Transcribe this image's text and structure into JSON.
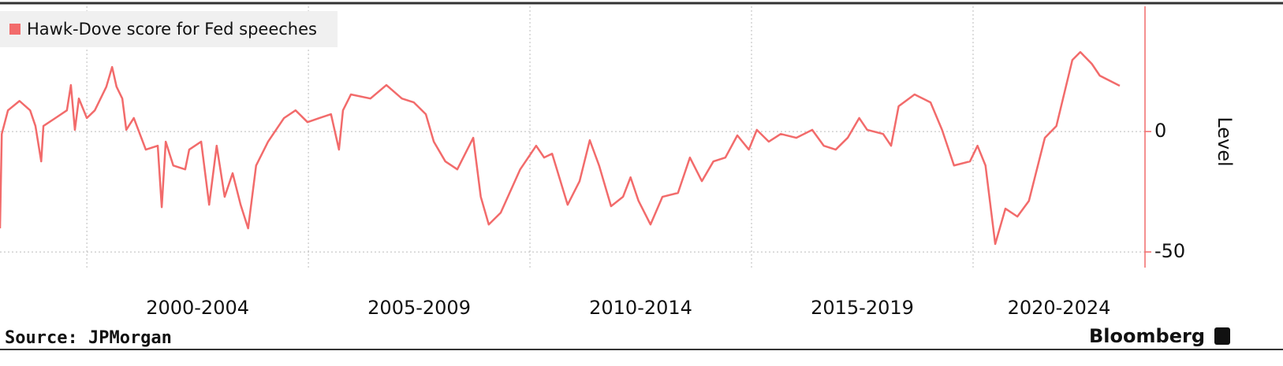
{
  "chart_data": {
    "type": "line",
    "y_axis_label": "Level",
    "source": "Source: JPMorgan",
    "brand": "Bloomberg",
    "legend_position": "upper left",
    "grid": true,
    "xlim": [
      1998.04,
      2023.88
    ],
    "xticks": [
      {
        "value": 2000,
        "label": "2000-2004"
      },
      {
        "value": 2005,
        "label": "2005-2009"
      },
      {
        "value": 2010,
        "label": "2010-2014"
      },
      {
        "value": 2015,
        "label": "2015-2019"
      },
      {
        "value": 2020,
        "label": "2020-2024"
      }
    ],
    "ylim": [
      -56.5,
      52
    ],
    "yticks": [
      0,
      -50
    ],
    "x": [
      1998.04,
      1998.08,
      1998.22,
      1998.48,
      1998.72,
      1998.84,
      1998.97,
      1999.02,
      1999.29,
      1999.55,
      1999.64,
      1999.73,
      1999.82,
      2000.0,
      2000.18,
      2000.44,
      2000.57,
      2000.67,
      2000.8,
      2000.89,
      2001.06,
      2001.33,
      2001.6,
      2001.69,
      2001.78,
      2001.95,
      2002.22,
      2002.31,
      2002.58,
      2002.76,
      2002.93,
      2003.11,
      2003.29,
      2003.47,
      2003.64,
      2003.82,
      2004.09,
      2004.45,
      2004.71,
      2004.98,
      2005.25,
      2005.51,
      2005.69,
      2005.78,
      2005.96,
      2006.4,
      2006.76,
      2007.11,
      2007.38,
      2007.65,
      2007.83,
      2008.09,
      2008.36,
      2008.72,
      2008.89,
      2009.07,
      2009.34,
      2009.78,
      2010.14,
      2010.32,
      2010.5,
      2010.85,
      2011.12,
      2011.35,
      2011.56,
      2011.83,
      2012.1,
      2012.27,
      2012.45,
      2012.72,
      2012.99,
      2013.34,
      2013.61,
      2013.88,
      2014.14,
      2014.41,
      2014.68,
      2014.94,
      2015.12,
      2015.39,
      2015.66,
      2016.01,
      2016.37,
      2016.63,
      2016.9,
      2017.17,
      2017.43,
      2017.61,
      2017.97,
      2018.15,
      2018.32,
      2018.68,
      2019.04,
      2019.3,
      2019.57,
      2019.93,
      2020.1,
      2020.28,
      2020.5,
      2020.73,
      2021.0,
      2021.26,
      2021.62,
      2021.88,
      2022.24,
      2022.42,
      2022.68,
      2022.86,
      2023.31
    ],
    "series": [
      {
        "name": "Hawk-Dove score for Fed speeches",
        "color": "#f26b6b",
        "values": [
          -40.2,
          -1.0,
          8.8,
          12.7,
          8.8,
          2.3,
          -12.4,
          2.3,
          5.6,
          8.8,
          19.3,
          0.7,
          13.7,
          5.6,
          8.8,
          18.6,
          26.8,
          18.6,
          13.7,
          0.7,
          5.6,
          -7.5,
          -5.9,
          -31.4,
          -4.2,
          -14.1,
          -15.7,
          -7.5,
          -4.2,
          -30.4,
          -5.9,
          -27.1,
          -17.3,
          -30.4,
          -40.2,
          -14.1,
          -4.2,
          5.6,
          8.8,
          3.9,
          5.6,
          7.2,
          -7.5,
          8.8,
          15.4,
          13.7,
          19.3,
          13.7,
          12.1,
          7.2,
          -4.2,
          -12.4,
          -15.7,
          -2.6,
          -27.1,
          -38.6,
          -33.7,
          -15.7,
          -5.9,
          -10.8,
          -9.2,
          -30.4,
          -20.6,
          -3.6,
          -14.1,
          -31.0,
          -27.1,
          -19.0,
          -28.8,
          -38.6,
          -27.1,
          -25.5,
          -10.8,
          -20.6,
          -12.4,
          -10.8,
          -1.6,
          -7.5,
          0.7,
          -4.2,
          -1.0,
          -2.6,
          0.7,
          -5.9,
          -7.5,
          -2.6,
          5.6,
          0.7,
          -1.0,
          -5.9,
          10.5,
          15.4,
          12.1,
          0.7,
          -14.1,
          -12.4,
          -5.9,
          -14.1,
          -46.7,
          -32.0,
          -35.3,
          -28.8,
          -2.6,
          2.3,
          29.7,
          33.0,
          28.1,
          23.2,
          19.0
        ]
      }
    ]
  }
}
